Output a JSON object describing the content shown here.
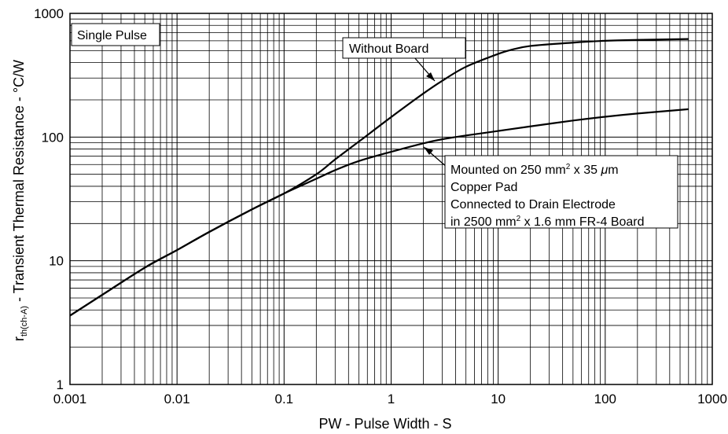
{
  "chart_data": {
    "type": "line",
    "x_scale": "log",
    "y_scale": "log",
    "xlim": [
      0.001,
      1000
    ],
    "ylim": [
      1,
      1000
    ],
    "x_ticks": [
      "0.001",
      "0.01",
      "0.1",
      "1",
      "10",
      "100",
      "1000"
    ],
    "y_ticks": [
      "1",
      "10",
      "100",
      "1000"
    ],
    "xlabel": "PW -  Pulse Width -  S",
    "ylabel": {
      "symbol": "r",
      "subscript": "th(ch-A)",
      "text": " -  Transient Thermal Resistance - °C/W"
    },
    "grid": true,
    "annotations": {
      "single_pulse": "Single Pulse",
      "without_board": "Without Board",
      "mounted_lines": [
        [
          "Mounted on 250 mm",
          "2",
          " x 35 ",
          "μ",
          "m"
        ],
        [
          "Copper Pad"
        ],
        [
          "Connected to Drain Electrode"
        ],
        [
          "in 2500 mm",
          "2",
          " x 1.6 mm FR-4 Board"
        ]
      ]
    },
    "series": [
      {
        "name": "Without Board",
        "x": [
          0.001,
          0.002,
          0.005,
          0.01,
          0.02,
          0.05,
          0.1,
          0.2,
          0.3,
          0.5,
          1,
          2,
          3,
          5,
          10,
          13,
          20,
          50,
          100,
          200,
          600
        ],
        "y": [
          3.6,
          5.3,
          8.8,
          12.2,
          17.1,
          26,
          35,
          50,
          66,
          92,
          145,
          225,
          285,
          370,
          470,
          505,
          545,
          580,
          600,
          610,
          620
        ]
      },
      {
        "name": "Mounted on 250 mm2 x 35 μm Copper Pad",
        "x": [
          0.001,
          0.002,
          0.005,
          0.01,
          0.02,
          0.05,
          0.1,
          0.2,
          0.3,
          0.5,
          1,
          2,
          3,
          5,
          10,
          20,
          50,
          100,
          200,
          600
        ],
        "y": [
          3.6,
          5.3,
          8.8,
          12.2,
          17.1,
          26,
          35,
          46,
          54,
          64,
          76,
          89,
          96,
          103,
          112,
          122,
          136,
          146,
          155,
          168
        ]
      }
    ]
  }
}
